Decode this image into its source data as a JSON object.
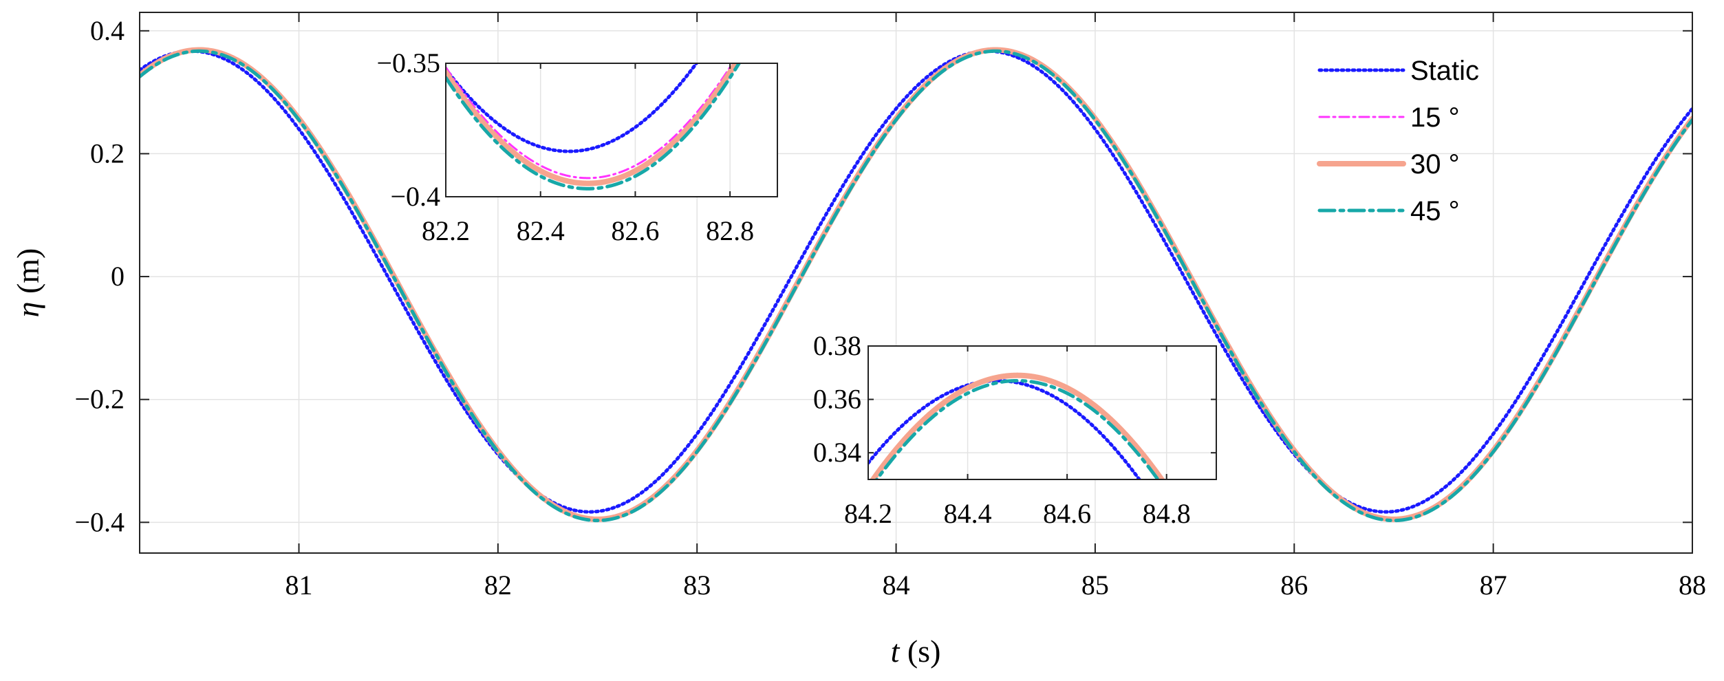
{
  "chart_data": {
    "type": "line",
    "xlabel": {
      "italic": "t",
      "rest": " (s)"
    },
    "ylabel": {
      "italic": "η",
      "rest": " (m)"
    },
    "xlim": [
      80.2,
      88
    ],
    "ylim": [
      -0.45,
      0.43
    ],
    "xticks": [
      81,
      82,
      83,
      84,
      85,
      86,
      87,
      88
    ],
    "xtick_labels": [
      "81",
      "82",
      "83",
      "84",
      "85",
      "86",
      "87",
      "88"
    ],
    "yticks": [
      0.4,
      0.2,
      0,
      -0.2,
      -0.4
    ],
    "ytick_labels": [
      "0.4",
      "0.2",
      "0",
      "−0.2",
      "−0.4"
    ],
    "grid": true,
    "legend_position": "top-right",
    "series": [
      {
        "name": "Static",
        "color": "#1a1aff",
        "style": "dotted",
        "amplitude": 0.375,
        "offset": -0.008,
        "phase_shift": -0.04
      },
      {
        "name": "15 °",
        "color": "#ff33ff",
        "style": "dashdot-thin",
        "amplitude": 0.381,
        "offset": -0.012,
        "phase_shift": 0.0
      },
      {
        "name": "30 °",
        "color": "#f6a48e",
        "style": "solid-thick",
        "amplitude": 0.382,
        "offset": -0.013,
        "phase_shift": 0.0
      },
      {
        "name": "45 °",
        "color": "#17a8a8",
        "style": "dashdot-thick",
        "amplitude": 0.382,
        "offset": -0.015,
        "phase_shift": 0.0
      }
    ],
    "insets": [
      {
        "xlim": [
          82.2,
          82.9
        ],
        "ylim": [
          -0.4,
          -0.35
        ],
        "xtick_labels": [
          "82.2",
          "82.4",
          "82.6",
          "82.8"
        ],
        "xticks": [
          82.2,
          82.4,
          82.6,
          82.8
        ],
        "ytick_labels": [
          "−0.35",
          "−0.4"
        ],
        "yticks": [
          -0.35,
          -0.4
        ]
      },
      {
        "xlim": [
          84.2,
          84.9
        ],
        "ylim": [
          0.33,
          0.38
        ],
        "xtick_labels": [
          "84.2",
          "84.4",
          "84.6",
          "84.8"
        ],
        "xticks": [
          84.2,
          84.4,
          84.6,
          84.8
        ],
        "ytick_labels": [
          "0.38",
          "0.36",
          "0.34"
        ],
        "yticks": [
          0.38,
          0.36,
          0.34
        ]
      }
    ]
  }
}
